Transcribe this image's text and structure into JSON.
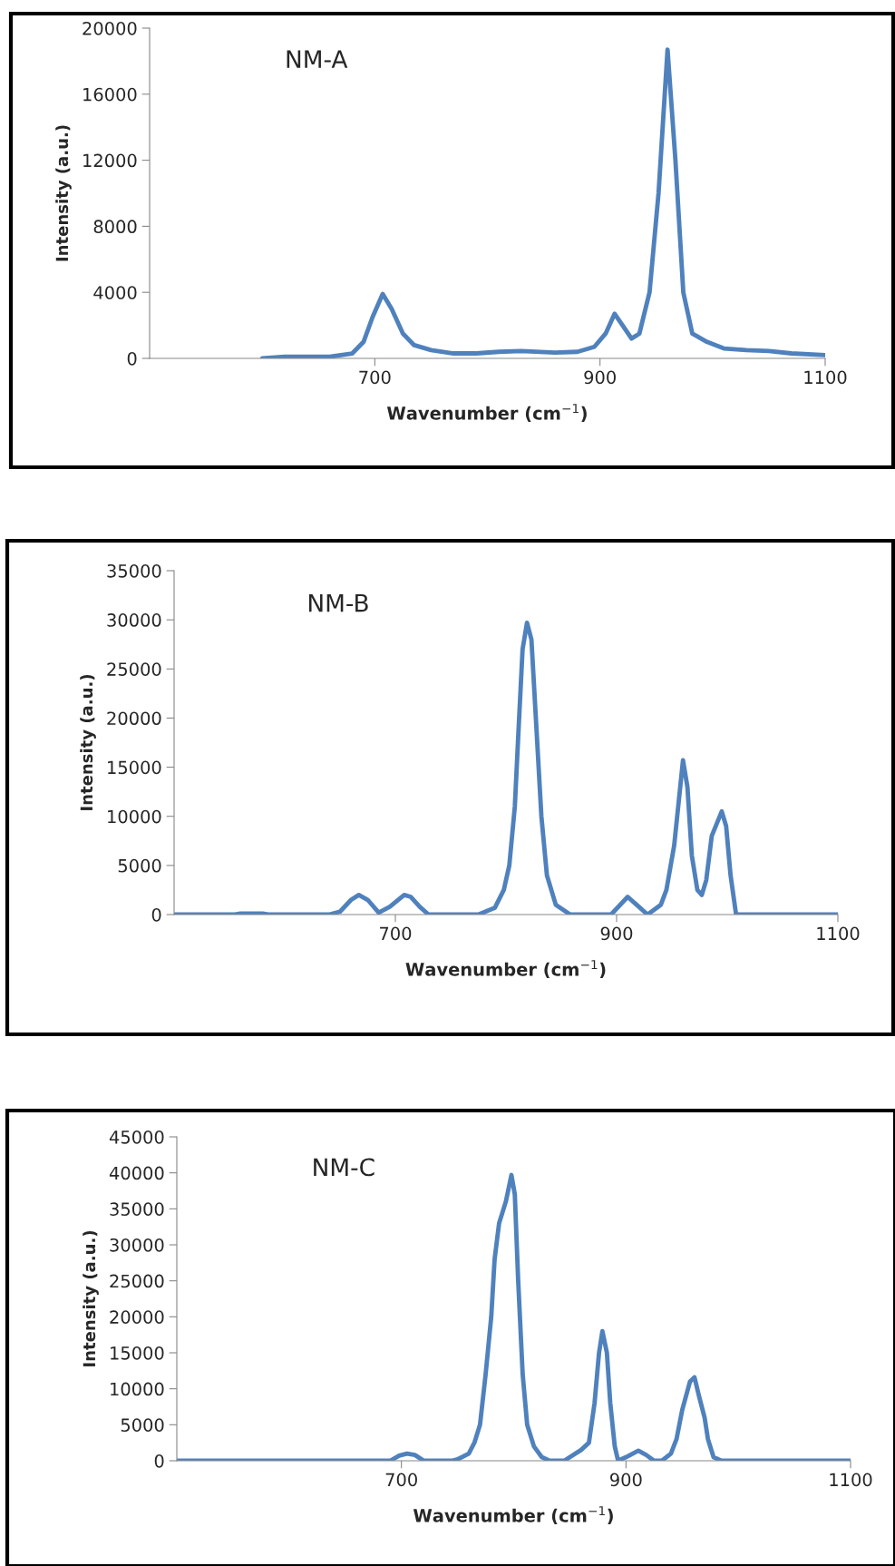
{
  "chart_data": [
    {
      "type": "line",
      "title": "NM-A",
      "xlabel": "Wavenumber (cm$^{−1}$)",
      "ylabel": "Intensity (a.u.)",
      "xlim": [
        500,
        1100
      ],
      "xticks": [
        700,
        900,
        1100
      ],
      "ylim": [
        0,
        20000
      ],
      "yticks": [
        0,
        4000,
        8000,
        12000,
        16000,
        20000
      ],
      "line_style": "solid",
      "marker": "none",
      "grid": false,
      "legend": false,
      "series": [
        {
          "color": "#4f81bd",
          "x": [
            600,
            620,
            660,
            680,
            690,
            698,
            707,
            715,
            725,
            735,
            750,
            770,
            790,
            810,
            830,
            860,
            880,
            895,
            905,
            913,
            922,
            928,
            935,
            944,
            952,
            960,
            967,
            974,
            982,
            995,
            1010,
            1030,
            1050,
            1070,
            1100
          ],
          "values": [
            0,
            100,
            100,
            300,
            1000,
            2500,
            3900,
            3000,
            1500,
            800,
            500,
            300,
            300,
            400,
            450,
            350,
            400,
            700,
            1500,
            2700,
            1800,
            1200,
            1500,
            4000,
            10000,
            18700,
            12000,
            4000,
            1500,
            1000,
            600,
            500,
            450,
            300,
            200
          ]
        }
      ]
    },
    {
      "type": "line",
      "title": "NM-B",
      "xlabel": "Wavenumber (cm$^{−1}$)",
      "ylabel": "Intensity (a.u.)",
      "xlim": [
        500,
        1100
      ],
      "xticks": [
        700,
        900,
        1100
      ],
      "ylim": [
        0,
        35000
      ],
      "yticks": [
        0,
        5000,
        10000,
        15000,
        20000,
        25000,
        30000,
        35000
      ],
      "line_style": "solid",
      "marker": "none",
      "grid": false,
      "legend": false,
      "series": [
        {
          "color": "#4f81bd",
          "x": [
            500,
            555,
            560,
            580,
            585,
            640,
            650,
            660,
            667,
            675,
            685,
            695,
            708,
            714,
            722,
            730,
            775,
            790,
            798,
            803,
            808,
            811,
            815,
            819,
            823,
            827,
            832,
            837,
            845,
            858,
            895,
            910,
            918,
            928,
            940,
            945,
            952,
            960,
            964,
            968,
            973,
            977,
            981,
            986,
            995,
            999,
            1003,
            1008,
            1040,
            1100
          ],
          "values": [
            0,
            0,
            100,
            100,
            0,
            0,
            300,
            1500,
            2000,
            1500,
            200,
            800,
            2000,
            1800,
            800,
            0,
            0,
            700,
            2500,
            5000,
            11000,
            18000,
            27000,
            29700,
            28000,
            20000,
            10000,
            4000,
            1000,
            0,
            0,
            1800,
            1000,
            0,
            1000,
            2500,
            7000,
            15700,
            13000,
            6000,
            2500,
            2000,
            3500,
            8000,
            10500,
            9000,
            4000,
            0,
            0,
            0
          ]
        }
      ]
    },
    {
      "type": "line",
      "title": "NM-C",
      "xlabel": "Wavenumber (cm$^{−1}$)",
      "ylabel": "Intensity (a.u.)",
      "xlim": [
        500,
        1100
      ],
      "xticks": [
        700,
        900,
        1100
      ],
      "ylim": [
        0,
        45000
      ],
      "yticks": [
        0,
        5000,
        10000,
        15000,
        20000,
        25000,
        30000,
        35000,
        40000,
        45000
      ],
      "line_style": "solid",
      "marker": "none",
      "grid": false,
      "legend": false,
      "series": [
        {
          "color": "#4f81bd",
          "x": [
            500,
            690,
            698,
            705,
            712,
            720,
            745,
            750,
            760,
            765,
            770,
            775,
            780,
            783,
            787,
            793,
            798,
            801,
            804,
            808,
            812,
            818,
            825,
            832,
            845,
            850,
            860,
            867,
            872,
            876,
            879,
            883,
            886,
            890,
            893,
            900,
            911,
            918,
            925,
            932,
            940,
            945,
            950,
            957,
            961,
            965,
            970,
            973,
            978,
            985,
            1100
          ],
          "values": [
            0,
            0,
            700,
            1000,
            800,
            0,
            0,
            200,
            1000,
            2500,
            5000,
            12000,
            20000,
            28000,
            33000,
            36000,
            39700,
            37000,
            25000,
            12000,
            5000,
            2000,
            500,
            0,
            0,
            500,
            1500,
            2500,
            8000,
            15000,
            18000,
            15000,
            8000,
            2000,
            0,
            500,
            1400,
            800,
            0,
            0,
            1000,
            3000,
            7000,
            11000,
            11600,
            9000,
            6000,
            3000,
            500,
            0,
            0
          ]
        }
      ]
    }
  ]
}
